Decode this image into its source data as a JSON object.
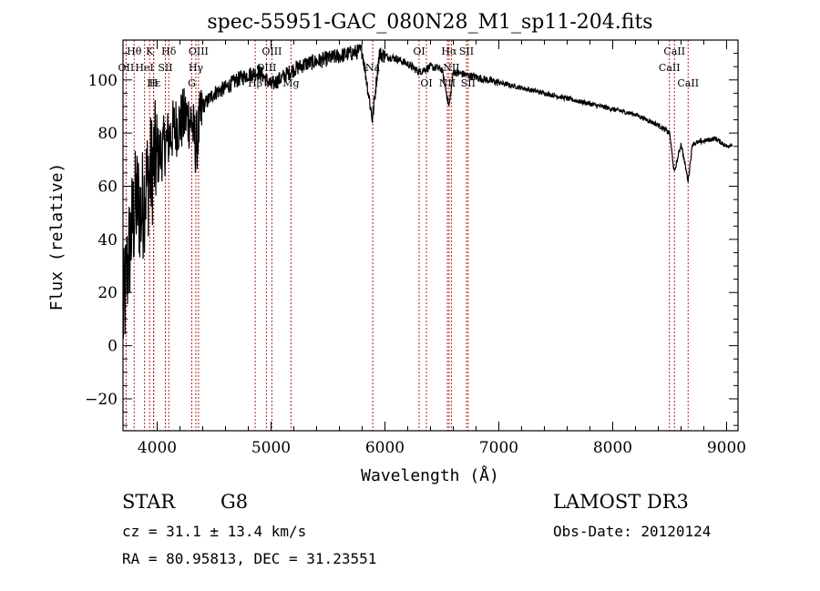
{
  "chart_data": {
    "type": "line",
    "title": "spec-55951-GAC_080N28_M1_sp11-204.fits",
    "xlabel": "Wavelength (Å)",
    "ylabel": "Flux (relative)",
    "xlim": [
      3700,
      9100
    ],
    "ylim": [
      -32,
      115
    ],
    "xticks": [
      4000,
      5000,
      6000,
      7000,
      8000,
      9000
    ],
    "xtick_labels": [
      "4000",
      "5000",
      "6000",
      "7000",
      "8000",
      "9000"
    ],
    "yticks": [
      -20,
      0,
      20,
      40,
      60,
      80,
      100
    ],
    "ytick_labels": [
      "−20",
      "0",
      "20",
      "40",
      "60",
      "80",
      "100"
    ],
    "series": [
      {
        "name": "spectrum",
        "x": [
          3700,
          3740,
          3780,
          3820,
          3860,
          3900,
          3940,
          3980,
          4020,
          4060,
          4100,
          4150,
          4200,
          4250,
          4300,
          4340,
          4400,
          4500,
          4600,
          4700,
          4800,
          4900,
          5000,
          5100,
          5200,
          5300,
          5400,
          5500,
          5600,
          5700,
          5800,
          5890,
          5950,
          6000,
          6100,
          6200,
          6300,
          6400,
          6500,
          6563,
          6600,
          6700,
          6800,
          6900,
          7000,
          7200,
          7400,
          7600,
          7800,
          8000,
          8200,
          8400,
          8500,
          8540,
          8600,
          8662,
          8700,
          8800,
          8900,
          9000,
          9050
        ],
        "y": [
          10,
          30,
          45,
          55,
          50,
          60,
          65,
          70,
          72,
          75,
          78,
          82,
          84,
          86,
          85,
          75,
          90,
          95,
          97,
          100,
          102,
          103,
          98,
          101,
          104,
          106,
          107,
          108,
          109,
          110,
          111,
          85,
          110,
          109,
          108,
          106,
          103,
          105,
          104,
          90,
          103,
          102,
          101,
          100,
          99,
          97,
          95,
          93,
          91,
          89,
          87,
          83,
          80,
          65,
          76,
          62,
          76,
          77,
          78,
          75,
          76
        ]
      }
    ],
    "line_markers": [
      {
        "label": "Hθ",
        "x": 3798,
        "row": 0
      },
      {
        "label": "K",
        "x": 3934,
        "row": 0
      },
      {
        "label": "Hδ",
        "x": 4102,
        "row": 0
      },
      {
        "label": "OIII",
        "x": 4363,
        "row": 0
      },
      {
        "label": "OIII",
        "x": 5007,
        "row": 0
      },
      {
        "label": "OI",
        "x": 6300,
        "row": 0
      },
      {
        "label": "Hα",
        "x": 6563,
        "row": 0
      },
      {
        "label": "SII",
        "x": 6716,
        "row": 0
      },
      {
        "label": "CaII",
        "x": 8542,
        "row": 0
      },
      {
        "label": "OII",
        "x": 3727,
        "row": 1
      },
      {
        "label": "HeI",
        "x": 3889,
        "row": 1
      },
      {
        "label": "SII",
        "x": 4072,
        "row": 1
      },
      {
        "label": "Hγ",
        "x": 4340,
        "row": 1
      },
      {
        "label": "OIII",
        "x": 4959,
        "row": 1
      },
      {
        "label": "Na",
        "x": 5893,
        "row": 1
      },
      {
        "label": "NII",
        "x": 6583,
        "row": 1
      },
      {
        "label": "CaII",
        "x": 8498,
        "row": 1
      },
      {
        "label": "Hε",
        "x": 3970,
        "row": 2
      },
      {
        "label": "H",
        "x": 3968,
        "row": 2
      },
      {
        "label": "G",
        "x": 4304,
        "row": 2
      },
      {
        "label": "Hβ",
        "x": 4861,
        "row": 2
      },
      {
        "label": "Mg",
        "x": 5175,
        "row": 2
      },
      {
        "label": "OI",
        "x": 6364,
        "row": 2
      },
      {
        "label": "NII",
        "x": 6548,
        "row": 2
      },
      {
        "label": "SII",
        "x": 6731,
        "row": 2
      },
      {
        "label": "CaII",
        "x": 8662,
        "row": 2
      }
    ]
  },
  "info": {
    "object_class": "STAR",
    "subclass": "G8",
    "survey": "LAMOST DR3",
    "cz": "cz = 31.1 ± 13.4 km/s",
    "obs_date": "Obs-Date: 20120124",
    "coords": "RA =  80.95813, DEC =  31.23551"
  },
  "colors": {
    "axis": "#000000",
    "spectrum": "#000000",
    "marker_line": "#b22222"
  }
}
